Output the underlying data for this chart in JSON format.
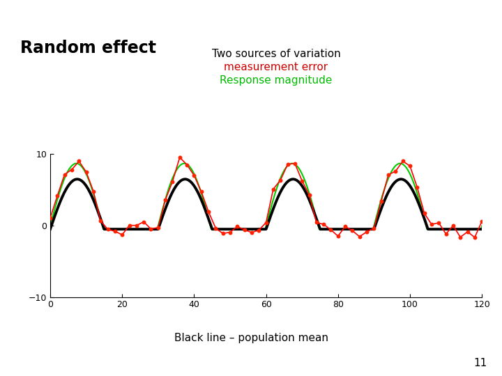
{
  "title": "Random effect",
  "subtitle_line1": "Two sources of variation",
  "subtitle_line2": "measurement error",
  "subtitle_line3": "Response magnitude",
  "subtitle_color1": "#000000",
  "subtitle_color2": "#cc0000",
  "subtitle_color3": "#00bb00",
  "footer": "Black line – population mean",
  "page_number": "11",
  "background_color": "#ffffff",
  "header_color": "#1a1a1a",
  "xlim": [
    0,
    120
  ],
  "ylim": [
    -10,
    10
  ],
  "xticks": [
    0,
    20,
    40,
    60,
    80,
    100,
    120
  ],
  "yticks": [
    -10,
    0,
    10
  ],
  "black_amplitude": 7.0,
  "green_amplitude": 9.2,
  "red_amplitude": 9.8,
  "period": 30.0,
  "n_points": 120,
  "dot_size": 18,
  "black_linewidth": 2.8,
  "green_linewidth": 1.5,
  "red_linewidth": 1.2,
  "noise_std": 0.6,
  "n_dots": 61,
  "seed": 3
}
